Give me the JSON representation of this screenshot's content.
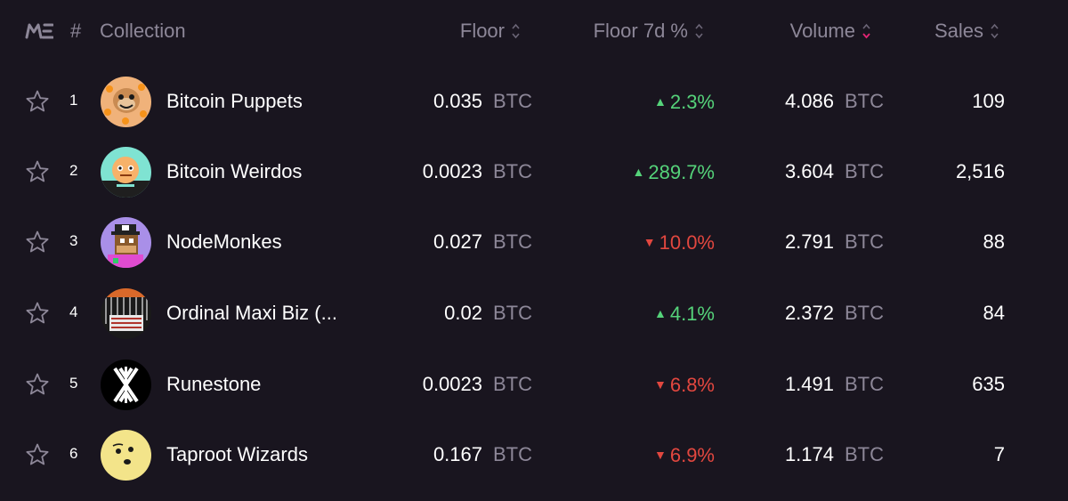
{
  "header": {
    "hash": "#",
    "collection": "Collection",
    "floor": "Floor",
    "floor_7d": "Floor 7d %",
    "volume": "Volume",
    "sales": "Sales",
    "logo_icon": "magic-eden-logo-icon"
  },
  "colors": {
    "background": "#19151f",
    "muted": "#8d8798",
    "up": "#55d37a",
    "down": "#e2473f",
    "sort_active": "#e42575"
  },
  "rows": [
    {
      "rank": "1",
      "name": "Bitcoin Puppets",
      "floor": "0.035",
      "floor_unit": "BTC",
      "change": "2.3%",
      "direction": "up",
      "arrow": "▲",
      "volume": "4.086",
      "volume_unit": "BTC",
      "sales": "109"
    },
    {
      "rank": "2",
      "name": "Bitcoin Weirdos",
      "floor": "0.0023",
      "floor_unit": "BTC",
      "change": "289.7%",
      "direction": "up",
      "arrow": "▲",
      "volume": "3.604",
      "volume_unit": "BTC",
      "sales": "2,516"
    },
    {
      "rank": "3",
      "name": "NodeMonkes",
      "floor": "0.027",
      "floor_unit": "BTC",
      "change": "10.0%",
      "direction": "down",
      "arrow": "▼",
      "volume": "2.791",
      "volume_unit": "BTC",
      "sales": "88"
    },
    {
      "rank": "4",
      "name": "Ordinal Maxi Biz (...",
      "floor": "0.02",
      "floor_unit": "BTC",
      "change": "4.1%",
      "direction": "up",
      "arrow": "▲",
      "volume": "2.372",
      "volume_unit": "BTC",
      "sales": "84"
    },
    {
      "rank": "5",
      "name": "Runestone",
      "floor": "0.0023",
      "floor_unit": "BTC",
      "change": "6.8%",
      "direction": "down",
      "arrow": "▼",
      "volume": "1.491",
      "volume_unit": "BTC",
      "sales": "635"
    },
    {
      "rank": "6",
      "name": "Taproot Wizards",
      "floor": "0.167",
      "floor_unit": "BTC",
      "change": "6.9%",
      "direction": "down",
      "arrow": "▼",
      "volume": "1.174",
      "volume_unit": "BTC",
      "sales": "7"
    }
  ]
}
